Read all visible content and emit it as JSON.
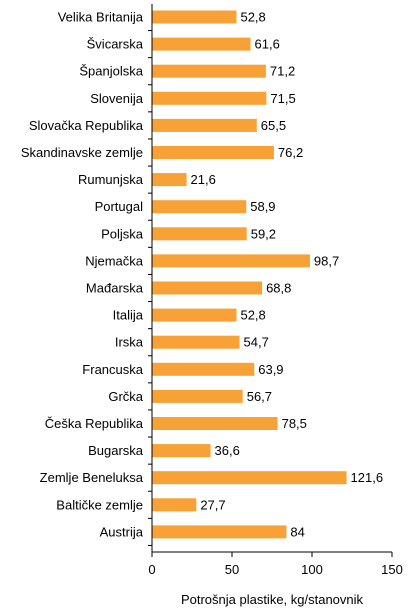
{
  "chart_data": {
    "type": "bar",
    "orientation": "horizontal",
    "categories": [
      "Velika Britanija",
      "Švicarska",
      "Španjolska",
      "Slovenija",
      "Slovačka Republika",
      "Skandinavske zemlje",
      "Rumunjska",
      "Portugal",
      "Poljska",
      "Njemačka",
      "Mađarska",
      "Italija",
      "Irska",
      "Francuska",
      "Grčka",
      "Češka Republika",
      "Bugarska",
      "Zemlje Beneluksa",
      "Baltičke zemlje",
      "Austrija"
    ],
    "values": [
      52.8,
      61.6,
      71.2,
      71.5,
      65.5,
      76.2,
      21.6,
      58.9,
      59.2,
      98.7,
      68.8,
      52.8,
      54.7,
      63.9,
      56.7,
      78.5,
      36.6,
      121.6,
      27.7,
      84
    ],
    "value_labels": [
      "52,8",
      "61,6",
      "71,2",
      "71,5",
      "65,5",
      "76,2",
      "21,6",
      "58,9",
      "59,2",
      "98,7",
      "68,8",
      "52,8",
      "54,7",
      "63,9",
      "56,7",
      "78,5",
      "36,6",
      "121,6",
      "27,7",
      "84"
    ],
    "title": "",
    "xlabel": "Potrošnja plastike, kg/stanovnik",
    "ylabel": "",
    "xlim": [
      0,
      150
    ],
    "x_ticks": [
      0,
      50,
      100,
      150
    ],
    "x_tick_labels": [
      "0",
      "50",
      "100",
      "150"
    ],
    "bar_color": "#F7A136",
    "grid": false,
    "legend": "none"
  }
}
